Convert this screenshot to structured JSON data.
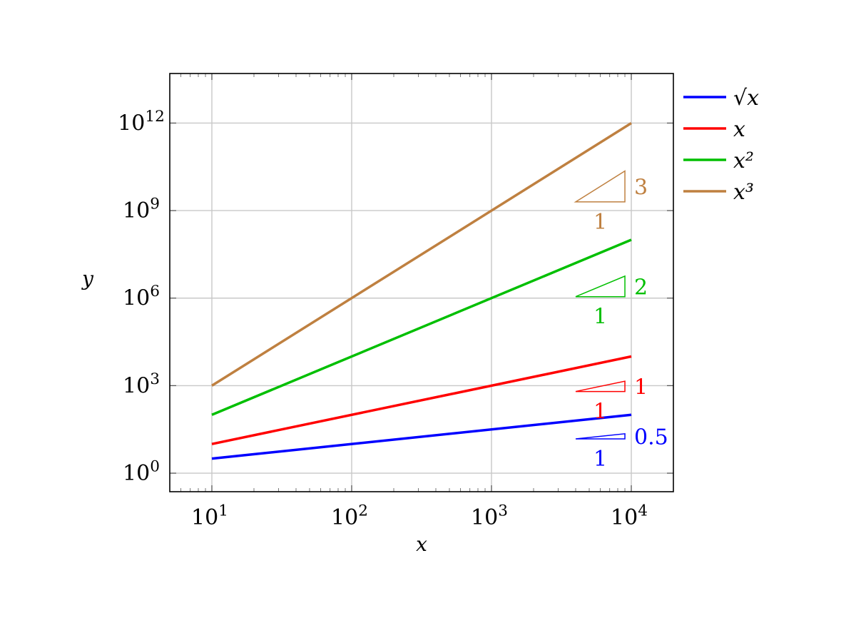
{
  "chart_data": {
    "type": "line",
    "xscale": "log",
    "yscale": "log",
    "xlim": [
      5,
      20000
    ],
    "ylim": [
      0.2317,
      50000000000000.0
    ],
    "xlabel": "x",
    "ylabel": "y",
    "grid": true,
    "legend_placement": "outside-right-top",
    "x_ticks": [
      {
        "value": 10,
        "base": "10",
        "exp": "1"
      },
      {
        "value": 100,
        "base": "10",
        "exp": "2"
      },
      {
        "value": 1000,
        "base": "10",
        "exp": "3"
      },
      {
        "value": 10000,
        "base": "10",
        "exp": "4"
      }
    ],
    "y_ticks": [
      {
        "value": 1,
        "base": "10",
        "exp": "0"
      },
      {
        "value": 1000,
        "base": "10",
        "exp": "3"
      },
      {
        "value": 1000000,
        "base": "10",
        "exp": "6"
      },
      {
        "value": 1000000000,
        "base": "10",
        "exp": "9"
      },
      {
        "value": 1000000000000,
        "base": "10",
        "exp": "12"
      }
    ],
    "series": [
      {
        "key": "sqrt",
        "name": "√x",
        "color": "#0000ff",
        "power": 0.5,
        "x": [
          10,
          10000
        ],
        "y": [
          3.162,
          100
        ],
        "slope_triangle": {
          "x": [
            4000,
            9000
          ],
          "rise_label": "0.5",
          "run_label": "1"
        }
      },
      {
        "key": "linear",
        "name": "x",
        "color": "#ff0000",
        "power": 1,
        "x": [
          10,
          10000
        ],
        "y": [
          10,
          10000
        ],
        "slope_triangle": {
          "x": [
            4000,
            9000
          ],
          "rise_label": "1",
          "run_label": "1"
        }
      },
      {
        "key": "square",
        "name": "x²",
        "color": "#00bf00",
        "power": 2,
        "x": [
          10,
          10000
        ],
        "y": [
          100,
          100000000
        ],
        "slope_triangle": {
          "x": [
            4000,
            9000
          ],
          "rise_label": "2",
          "run_label": "1"
        }
      },
      {
        "key": "cube",
        "name": "x³",
        "color": "#bf8040",
        "power": 3,
        "x": [
          10,
          10000
        ],
        "y": [
          1000,
          1000000000000
        ],
        "slope_triangle": {
          "x": [
            4000,
            9000
          ],
          "rise_label": "3",
          "run_label": "1"
        }
      }
    ]
  }
}
